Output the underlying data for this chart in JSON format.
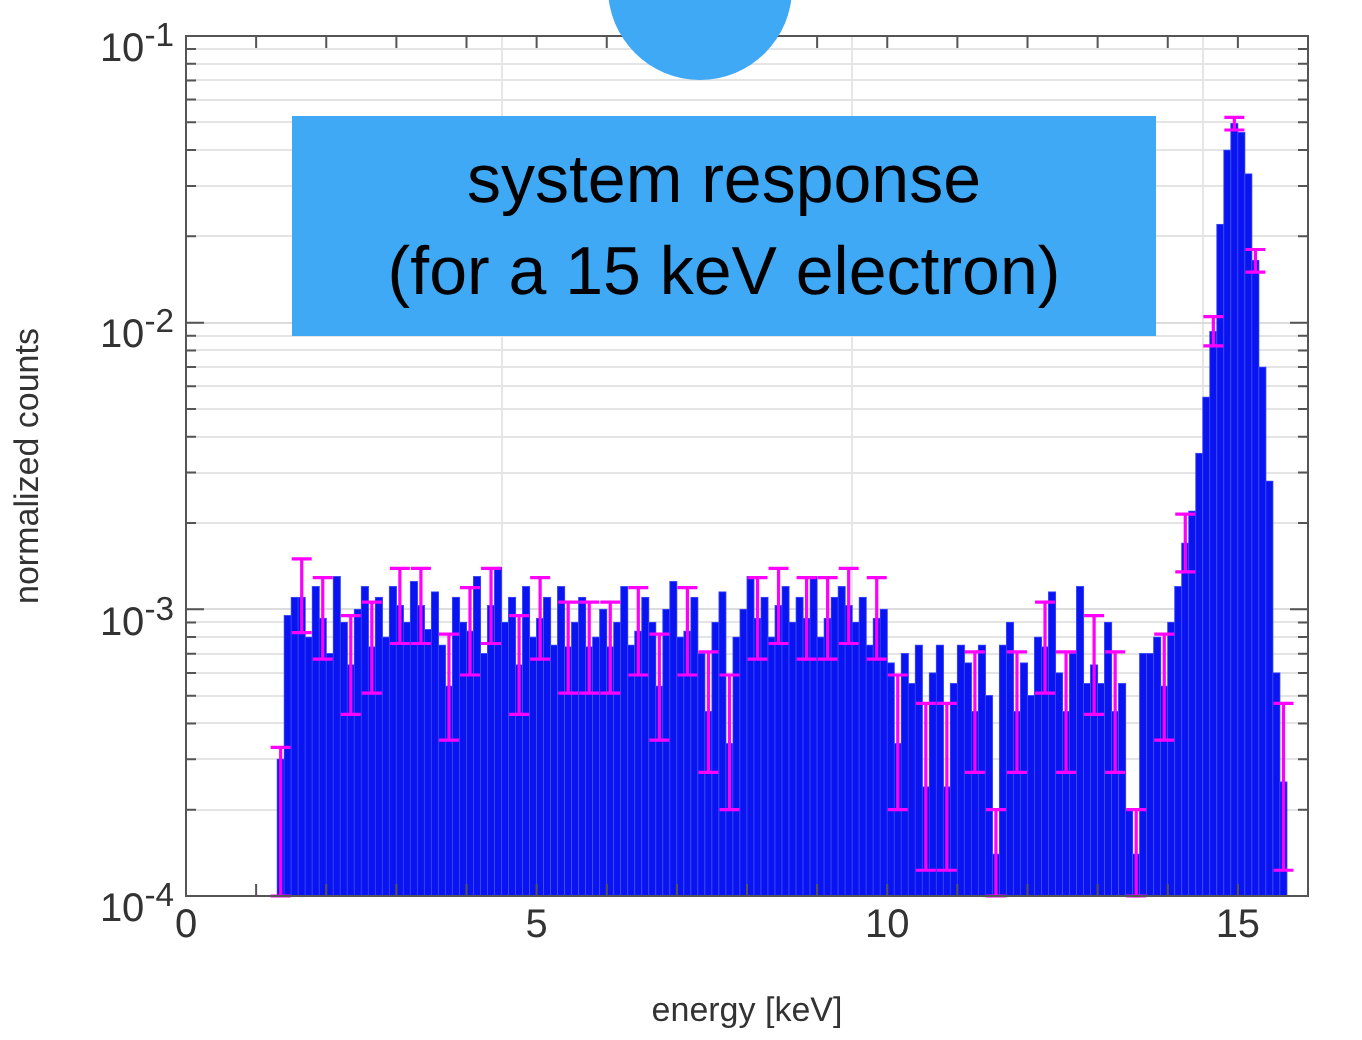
{
  "chart_data": {
    "type": "histogram",
    "xlabel": "energy [keV]",
    "ylabel": "normalized counts",
    "annotations": [
      "system response\n(for a 15 keV electron)"
    ],
    "color": "#0a14f0",
    "bins": [
      1.3,
      1.4,
      1.5,
      1.6,
      1.7,
      1.8,
      1.9,
      2.0,
      2.1,
      2.2,
      2.3,
      2.4,
      2.5,
      2.6,
      2.7,
      2.8,
      2.9,
      3.0,
      3.1,
      3.2,
      3.3,
      3.4,
      3.5,
      3.6,
      3.7,
      3.8,
      3.9,
      4.0,
      4.1,
      4.2,
      4.3,
      4.4,
      4.5,
      4.6,
      4.7,
      4.8,
      4.9,
      5.0,
      5.1,
      5.2,
      5.3,
      5.4,
      5.5,
      5.6,
      5.7,
      5.8,
      5.9,
      6.0,
      6.1,
      6.2,
      6.3,
      6.4,
      6.5,
      6.6,
      6.7,
      6.8,
      6.9,
      7.0,
      7.1,
      7.2,
      7.3,
      7.4,
      7.5,
      7.6,
      7.7,
      7.8,
      7.9,
      8.0,
      8.1,
      8.2,
      8.3,
      8.4,
      8.5,
      8.6,
      8.7,
      8.8,
      8.9,
      9.0,
      9.1,
      9.2,
      9.3,
      9.4,
      9.5,
      9.6,
      9.7,
      9.8,
      9.9,
      10.0,
      10.1,
      10.2,
      10.3,
      10.4,
      10.5,
      10.6,
      10.7,
      10.8,
      10.9,
      11.0,
      11.1,
      11.2,
      11.3,
      11.4,
      11.5,
      11.6,
      11.7,
      11.8,
      11.9,
      12.0,
      12.1,
      12.2,
      12.3,
      12.4,
      12.5,
      12.6,
      12.7,
      12.8,
      12.9,
      13.0,
      13.1,
      13.2,
      13.3,
      13.4,
      13.5,
      13.6,
      13.7,
      13.8,
      13.9,
      14.0,
      14.1,
      14.2,
      14.3,
      14.4,
      14.5,
      14.6,
      14.7,
      14.8,
      14.9,
      15.0,
      15.1,
      15.2,
      15.3,
      15.4,
      15.5,
      15.6,
      15.7
    ],
    "values": [
      0.0003,
      0.00095,
      0.0011,
      0.0011,
      0.0008,
      0.0012,
      0.00093,
      0.0007,
      0.0013,
      0.0009,
      0.00064,
      0.001,
      0.0012,
      0.00074,
      0.0011,
      0.0008,
      0.0012,
      0.00103,
      0.0009,
      0.00125,
      0.00103,
      0.00085,
      0.00115,
      0.00075,
      0.00054,
      0.0011,
      0.0009,
      0.00084,
      0.0013,
      0.0007,
      0.00103,
      0.0014,
      0.0009,
      0.0011,
      0.00064,
      0.0012,
      0.0008,
      0.00093,
      0.0011,
      0.00075,
      0.0012,
      0.00074,
      0.0009,
      0.0011,
      0.00074,
      0.0008,
      0.001,
      0.00074,
      0.0009,
      0.0012,
      0.00075,
      0.00084,
      0.0011,
      0.0009,
      0.00054,
      0.001,
      0.00125,
      0.0008,
      0.00084,
      0.0011,
      0.0007,
      0.00044,
      0.0009,
      0.00115,
      0.00034,
      0.0008,
      0.001,
      0.0013,
      0.00093,
      0.0011,
      0.0008,
      0.00103,
      0.0012,
      0.0009,
      0.0011,
      0.00093,
      0.0013,
      0.0008,
      0.00093,
      0.0011,
      0.0012,
      0.00103,
      0.0009,
      0.0011,
      0.00075,
      0.00093,
      0.001,
      0.00065,
      0.00034,
      0.0007,
      0.00055,
      0.00075,
      0.00024,
      0.0006,
      0.00075,
      0.00024,
      0.00055,
      0.00075,
      0.00065,
      0.00044,
      0.00075,
      0.0005,
      0.00014,
      0.00075,
      0.0009,
      0.00044,
      0.00065,
      0.0005,
      0.0008,
      0.00074,
      0.00115,
      0.0006,
      0.00044,
      0.0007,
      0.0012,
      0.00055,
      0.00064,
      0.00055,
      0.0009,
      0.00044,
      0.00055,
      0.0002,
      0.00014,
      0.0007,
      0.0007,
      0.0008,
      0.00054,
      0.0009,
      0.0012,
      0.0017,
      0.0022,
      0.0035,
      0.0055,
      0.0093,
      0.022,
      0.04,
      0.0495,
      0.046,
      0.033,
      0.0165,
      0.007,
      0.0028,
      0.0006,
      0.00025
    ],
    "errors": [
      [
        0.0001,
        0.00033
      ],
      null,
      null,
      [
        0.00083,
        0.0015
      ],
      null,
      null,
      [
        0.00067,
        0.00129
      ],
      null,
      null,
      null,
      [
        0.00043,
        0.00095
      ],
      null,
      null,
      [
        0.00051,
        0.00106
      ],
      null,
      null,
      null,
      [
        0.00076,
        0.00139
      ],
      null,
      null,
      [
        0.00076,
        0.00139
      ],
      null,
      null,
      null,
      [
        0.00035,
        0.00082
      ],
      null,
      null,
      [
        0.00059,
        0.00119
      ],
      null,
      null,
      [
        0.00076,
        0.00139
      ],
      null,
      null,
      null,
      [
        0.00043,
        0.00095
      ],
      null,
      null,
      [
        0.00067,
        0.00129
      ],
      null,
      null,
      null,
      [
        0.00051,
        0.00106
      ],
      null,
      null,
      [
        0.00051,
        0.00106
      ],
      null,
      null,
      [
        0.00051,
        0.00106
      ],
      null,
      null,
      null,
      [
        0.00059,
        0.00119
      ],
      null,
      null,
      [
        0.00035,
        0.00082
      ],
      null,
      null,
      null,
      [
        0.00059,
        0.00119
      ],
      null,
      null,
      [
        0.00027,
        0.00071
      ],
      null,
      null,
      [
        0.0002,
        0.00059
      ],
      null,
      null,
      null,
      [
        0.00067,
        0.00129
      ],
      null,
      null,
      [
        0.00076,
        0.00139
      ],
      null,
      null,
      null,
      [
        0.00067,
        0.00129
      ],
      null,
      null,
      [
        0.00067,
        0.00129
      ],
      null,
      null,
      [
        0.00076,
        0.00139
      ],
      null,
      null,
      null,
      [
        0.00067,
        0.00129
      ],
      null,
      null,
      [
        0.0002,
        0.00059
      ],
      null,
      null,
      null,
      [
        0.000123,
        0.00047
      ],
      null,
      null,
      [
        0.000123,
        0.00047
      ],
      null,
      null,
      null,
      [
        0.00027,
        0.00071
      ],
      null,
      null,
      [
        0.0001,
        0.0002
      ],
      null,
      null,
      [
        0.00027,
        0.00071
      ],
      null,
      null,
      null,
      [
        0.00051,
        0.00106
      ],
      null,
      null,
      [
        0.00027,
        0.00071
      ],
      null,
      null,
      null,
      [
        0.00043,
        0.00095
      ],
      null,
      null,
      [
        0.00027,
        0.00071
      ],
      null,
      null,
      [
        0.0001,
        0.0002
      ],
      null,
      null,
      null,
      [
        0.00035,
        0.00082
      ],
      null,
      null,
      [
        0.00135,
        0.00215
      ],
      null,
      null,
      null,
      [
        0.0083,
        0.0105
      ],
      null,
      null,
      [
        0.047,
        0.052
      ],
      null,
      null,
      [
        0.015,
        0.018
      ],
      null,
      null,
      null,
      [
        0.000123,
        0.00047
      ]
    ],
    "xlim": [
      0,
      16
    ],
    "xticks": [
      0,
      {
        "value": 1,
        "label": null
      },
      {
        "value": 2,
        "label": null
      },
      {
        "value": 3,
        "label": null
      },
      {
        "value": 4,
        "label": null
      },
      5,
      {
        "value": 6,
        "label": null
      },
      {
        "value": 7,
        "label": null
      },
      {
        "value": 8,
        "label": null
      },
      {
        "value": 9,
        "label": null
      },
      10,
      {
        "value": 11,
        "label": null
      },
      {
        "value": 12,
        "label": null
      },
      {
        "value": 13,
        "label": null
      },
      {
        "value": 14,
        "label": null
      },
      15,
      {
        "value": 16,
        "label": null
      }
    ],
    "ylim": [
      0.0001,
      0.1
    ],
    "log": "y",
    "yticks": [
      {
        "value": 0.0001,
        "label": "10$^{-4}$"
      },
      {
        "value": 0.0002,
        "label": null
      },
      {
        "value": 0.0003,
        "label": null
      },
      {
        "value": 0.0004,
        "label": null
      },
      {
        "value": 0.0005,
        "label": null
      },
      {
        "value": 0.0006,
        "label": null
      },
      {
        "value": 0.0007,
        "label": null
      },
      {
        "value": 0.0008,
        "label": null
      },
      {
        "value": 0.0009,
        "label": null
      },
      {
        "value": 0.001,
        "label": "10$^{-3}$"
      },
      {
        "value": 0.002,
        "label": null
      },
      {
        "value": 0.003,
        "label": null
      },
      {
        "value": 0.004,
        "label": null
      },
      {
        "value": 0.005,
        "label": null
      },
      {
        "value": 0.006,
        "label": null
      },
      {
        "value": 0.007,
        "label": null
      },
      {
        "value": 0.008,
        "label": null
      },
      {
        "value": 0.009,
        "label": null
      },
      {
        "value": 0.01,
        "label": "10$^{-2}$"
      },
      {
        "value": 0.02,
        "label": null
      },
      {
        "value": 0.03,
        "label": null
      },
      {
        "value": 0.04,
        "label": null
      },
      {
        "value": 0.05,
        "label": null
      },
      {
        "value": 0.06,
        "label": null
      },
      {
        "value": 0.07,
        "label": null
      },
      {
        "value": 0.08,
        "label": null
      },
      {
        "value": 0.09,
        "label": null
      },
      {
        "value": 0.1,
        "label": "10$^{-1}$"
      }
    ],
    "grid": true,
    "legend": false
  }
}
